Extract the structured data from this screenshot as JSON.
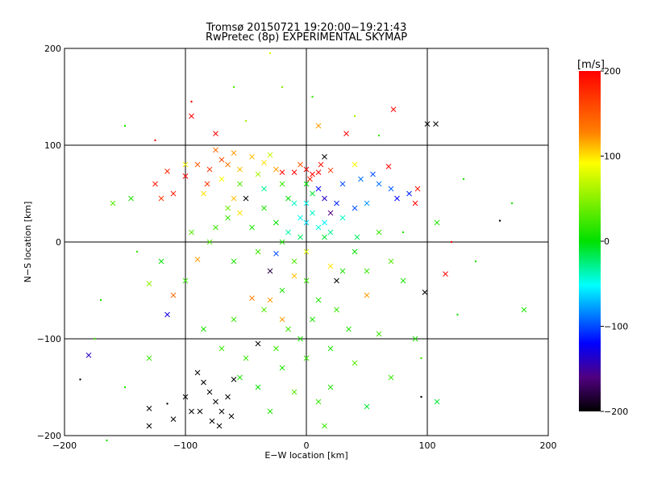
{
  "chart_data": {
    "type": "scatter",
    "title": "Tromsø 20150721 19:20:00−19:21:43",
    "subtitle": "RwPretec (8p) EXPERIMENTAL SKYMAP",
    "xlabel": "E−W location [km]",
    "ylabel": "N−S location [km]",
    "xlim": [
      -200,
      200
    ],
    "ylim": [
      -200,
      200
    ],
    "xticks": [
      -200,
      -100,
      0,
      100,
      200
    ],
    "yticks": [
      -200,
      -100,
      0,
      100,
      200
    ],
    "xtick_labels": [
      "−200",
      "−100",
      "0",
      "100",
      "200"
    ],
    "ytick_labels": [
      "−200",
      "−100",
      "0",
      "100",
      "200"
    ],
    "grid": true,
    "colorbar": {
      "label": "[m/s]",
      "range": [
        -200,
        200
      ],
      "ticks": [
        200,
        100,
        0,
        -100,
        -200
      ],
      "tick_labels": [
        "200",
        "100",
        "0",
        "−100",
        "−200"
      ],
      "colormap": "rainbow (black–violet–blue–cyan–green–yellow–red)"
    },
    "markers": [
      "x",
      "dot"
    ],
    "points": [
      {
        "x": 0,
        "y": 75,
        "v": 200,
        "m": "x"
      },
      {
        "x": 5,
        "y": 70,
        "v": 200,
        "m": "x"
      },
      {
        "x": 10,
        "y": 72,
        "v": 200,
        "m": "x"
      },
      {
        "x": -10,
        "y": 72,
        "v": 200,
        "m": "x"
      },
      {
        "x": -20,
        "y": 72,
        "v": 200,
        "m": "x"
      },
      {
        "x": 3,
        "y": 65,
        "v": 180,
        "m": "x"
      },
      {
        "x": 12,
        "y": 80,
        "v": 190,
        "m": "x"
      },
      {
        "x": 20,
        "y": 74,
        "v": 170,
        "m": "x"
      },
      {
        "x": -5,
        "y": 80,
        "v": 150,
        "m": "x"
      },
      {
        "x": 33,
        "y": 112,
        "v": 200,
        "m": "x"
      },
      {
        "x": -115,
        "y": 73,
        "v": 180,
        "m": "x"
      },
      {
        "x": -100,
        "y": 68,
        "v": 200,
        "m": "x"
      },
      {
        "x": -80,
        "y": 75,
        "v": 170,
        "m": "x"
      },
      {
        "x": -70,
        "y": 85,
        "v": 160,
        "m": "x"
      },
      {
        "x": -65,
        "y": 80,
        "v": 130,
        "m": "x"
      },
      {
        "x": -60,
        "y": 92,
        "v": 120,
        "m": "x"
      },
      {
        "x": -55,
        "y": 75,
        "v": 110,
        "m": "x"
      },
      {
        "x": -75,
        "y": 112,
        "v": 200,
        "m": "x"
      },
      {
        "x": -95,
        "y": 130,
        "v": 200,
        "m": "x"
      },
      {
        "x": -125,
        "y": 60,
        "v": 190,
        "m": "x"
      },
      {
        "x": -110,
        "y": 50,
        "v": 185,
        "m": "x"
      },
      {
        "x": -120,
        "y": 45,
        "v": 170,
        "m": "x"
      },
      {
        "x": 72,
        "y": 137,
        "v": 200,
        "m": "x"
      },
      {
        "x": 68,
        "y": 78,
        "v": 200,
        "m": "x"
      },
      {
        "x": 90,
        "y": 40,
        "v": 200,
        "m": "x"
      },
      {
        "x": 92,
        "y": 55,
        "v": 190,
        "m": "x"
      },
      {
        "x": 115,
        "y": -33,
        "v": 200,
        "m": "x"
      },
      {
        "x": 120,
        "y": 0,
        "v": 200,
        "m": "dot"
      },
      {
        "x": 100,
        "y": 122,
        "v": -200,
        "m": "x"
      },
      {
        "x": 107,
        "y": 122,
        "v": -200,
        "m": "x"
      },
      {
        "x": 98,
        "y": -52,
        "v": -200,
        "m": "x"
      },
      {
        "x": 160,
        "y": 22,
        "v": -200,
        "m": "dot"
      },
      {
        "x": 95,
        "y": -160,
        "v": -200,
        "m": "dot"
      },
      {
        "x": -130,
        "y": -172,
        "v": -200,
        "m": "x"
      },
      {
        "x": -130,
        "y": -190,
        "v": -200,
        "m": "x"
      },
      {
        "x": -100,
        "y": -160,
        "v": -200,
        "m": "x"
      },
      {
        "x": -95,
        "y": -175,
        "v": -200,
        "m": "x"
      },
      {
        "x": -90,
        "y": -135,
        "v": -200,
        "m": "x"
      },
      {
        "x": -85,
        "y": -145,
        "v": -200,
        "m": "x"
      },
      {
        "x": -80,
        "y": -155,
        "v": -200,
        "m": "x"
      },
      {
        "x": -75,
        "y": -165,
        "v": -200,
        "m": "x"
      },
      {
        "x": -70,
        "y": -175,
        "v": -200,
        "m": "x"
      },
      {
        "x": -65,
        "y": -160,
        "v": -200,
        "m": "x"
      },
      {
        "x": -62,
        "y": -180,
        "v": -200,
        "m": "x"
      },
      {
        "x": -78,
        "y": -185,
        "v": -200,
        "m": "x"
      },
      {
        "x": -72,
        "y": -190,
        "v": -200,
        "m": "x"
      },
      {
        "x": -88,
        "y": -175,
        "v": -200,
        "m": "x"
      },
      {
        "x": -60,
        "y": -142,
        "v": -200,
        "m": "x"
      },
      {
        "x": -110,
        "y": -183,
        "v": -200,
        "m": "x"
      },
      {
        "x": -40,
        "y": -105,
        "v": -200,
        "m": "x"
      },
      {
        "x": -50,
        "y": 45,
        "v": -200,
        "m": "x"
      },
      {
        "x": 15,
        "y": 88,
        "v": -200,
        "m": "x"
      },
      {
        "x": -187,
        "y": -142,
        "v": -200,
        "m": "dot"
      },
      {
        "x": -115,
        "y": -167,
        "v": -200,
        "m": "dot"
      },
      {
        "x": -30,
        "y": -30,
        "v": -180,
        "m": "x"
      },
      {
        "x": 25,
        "y": -40,
        "v": -200,
        "m": "x"
      },
      {
        "x": 20,
        "y": 30,
        "v": -160,
        "m": "x"
      },
      {
        "x": 10,
        "y": 55,
        "v": -120,
        "m": "x"
      },
      {
        "x": 15,
        "y": 45,
        "v": -140,
        "m": "x"
      },
      {
        "x": 25,
        "y": 40,
        "v": -110,
        "m": "x"
      },
      {
        "x": 30,
        "y": 60,
        "v": -100,
        "m": "x"
      },
      {
        "x": 45,
        "y": 65,
        "v": -90,
        "m": "x"
      },
      {
        "x": 55,
        "y": 70,
        "v": -100,
        "m": "x"
      },
      {
        "x": 60,
        "y": 60,
        "v": -90,
        "m": "x"
      },
      {
        "x": 70,
        "y": 55,
        "v": -95,
        "m": "x"
      },
      {
        "x": 85,
        "y": 50,
        "v": -110,
        "m": "x"
      },
      {
        "x": 75,
        "y": 45,
        "v": -120,
        "m": "x"
      },
      {
        "x": 40,
        "y": 35,
        "v": -100,
        "m": "x"
      },
      {
        "x": 50,
        "y": 40,
        "v": -80,
        "m": "x"
      },
      {
        "x": -180,
        "y": -117,
        "v": -140,
        "m": "x"
      },
      {
        "x": -115,
        "y": -75,
        "v": -130,
        "m": "x"
      },
      {
        "x": -25,
        "y": -12,
        "v": -100,
        "m": "x"
      },
      {
        "x": 0,
        "y": 20,
        "v": -60,
        "m": "x"
      },
      {
        "x": 5,
        "y": 30,
        "v": -40,
        "m": "x"
      },
      {
        "x": -5,
        "y": 25,
        "v": -50,
        "m": "x"
      },
      {
        "x": 10,
        "y": 15,
        "v": -45,
        "m": "x"
      },
      {
        "x": 15,
        "y": 20,
        "v": -55,
        "m": "x"
      },
      {
        "x": -10,
        "y": 40,
        "v": -40,
        "m": "x"
      },
      {
        "x": 20,
        "y": 10,
        "v": -30,
        "m": "x"
      },
      {
        "x": 0,
        "y": 40,
        "v": -50,
        "m": "x"
      },
      {
        "x": -15,
        "y": 10,
        "v": -35,
        "m": "x"
      },
      {
        "x": 30,
        "y": 25,
        "v": -40,
        "m": "x"
      },
      {
        "x": -35,
        "y": 55,
        "v": -30,
        "m": "x"
      },
      {
        "x": 42,
        "y": 5,
        "v": -20,
        "m": "x"
      },
      {
        "x": 108,
        "y": -165,
        "v": -10,
        "m": "x"
      },
      {
        "x": 180,
        "y": -70,
        "v": 10,
        "m": "x"
      },
      {
        "x": 108,
        "y": 20,
        "v": 10,
        "m": "x"
      },
      {
        "x": -145,
        "y": 45,
        "v": 10,
        "m": "x"
      },
      {
        "x": -130,
        "y": -43,
        "v": 50,
        "m": "x"
      },
      {
        "x": -165,
        "y": -205,
        "v": 10,
        "m": "dot"
      },
      {
        "x": 50,
        "y": -170,
        "v": -10,
        "m": "x"
      },
      {
        "x": 90,
        "y": -100,
        "v": 10,
        "m": "x"
      },
      {
        "x": 70,
        "y": -140,
        "v": 20,
        "m": "x"
      },
      {
        "x": -30,
        "y": -60,
        "v": 120,
        "m": "x"
      },
      {
        "x": -45,
        "y": -58,
        "v": 130,
        "m": "x"
      },
      {
        "x": -20,
        "y": -80,
        "v": 120,
        "m": "x"
      },
      {
        "x": 0,
        "y": -10,
        "v": 80,
        "m": "x"
      },
      {
        "x": -10,
        "y": -35,
        "v": 110,
        "m": "x"
      },
      {
        "x": 20,
        "y": -25,
        "v": 100,
        "m": "x"
      },
      {
        "x": 50,
        "y": -55,
        "v": 120,
        "m": "x"
      },
      {
        "x": -110,
        "y": -55,
        "v": 140,
        "m": "x"
      },
      {
        "x": -90,
        "y": -18,
        "v": 120,
        "m": "x"
      },
      {
        "x": -45,
        "y": 88,
        "v": 110,
        "m": "x"
      },
      {
        "x": -35,
        "y": 82,
        "v": 100,
        "m": "x"
      },
      {
        "x": -25,
        "y": 75,
        "v": 120,
        "m": "x"
      },
      {
        "x": -60,
        "y": 45,
        "v": 110,
        "m": "x"
      },
      {
        "x": -55,
        "y": 30,
        "v": 100,
        "m": "x"
      },
      {
        "x": -70,
        "y": 65,
        "v": 90,
        "m": "x"
      },
      {
        "x": -85,
        "y": 50,
        "v": 100,
        "m": "x"
      },
      {
        "x": -100,
        "y": 80,
        "v": 90,
        "m": "x"
      },
      {
        "x": 10,
        "y": 120,
        "v": 120,
        "m": "x"
      },
      {
        "x": -90,
        "y": 80,
        "v": 150,
        "m": "x"
      },
      {
        "x": -75,
        "y": 95,
        "v": 140,
        "m": "x"
      },
      {
        "x": -82,
        "y": 60,
        "v": 170,
        "m": "x"
      },
      {
        "x": -40,
        "y": 70,
        "v": 60,
        "m": "x"
      },
      {
        "x": -30,
        "y": 90,
        "v": 70,
        "m": "x"
      },
      {
        "x": 40,
        "y": 80,
        "v": 90,
        "m": "x"
      },
      {
        "x": -160,
        "y": 40,
        "v": 30,
        "m": "x"
      },
      {
        "x": -130,
        "y": -120,
        "v": 20,
        "m": "x"
      },
      {
        "x": -85,
        "y": -90,
        "v": 10,
        "m": "x"
      },
      {
        "x": -40,
        "y": -150,
        "v": 0,
        "m": "x"
      },
      {
        "x": -20,
        "y": -130,
        "v": 10,
        "m": "x"
      },
      {
        "x": 0,
        "y": -120,
        "v": 20,
        "m": "x"
      },
      {
        "x": 20,
        "y": -110,
        "v": 10,
        "m": "x"
      },
      {
        "x": -50,
        "y": -120,
        "v": 20,
        "m": "x"
      },
      {
        "x": -10,
        "y": -155,
        "v": 30,
        "m": "x"
      },
      {
        "x": 10,
        "y": -165,
        "v": 20,
        "m": "x"
      },
      {
        "x": 20,
        "y": -150,
        "v": 10,
        "m": "x"
      },
      {
        "x": -30,
        "y": -175,
        "v": 10,
        "m": "x"
      },
      {
        "x": 15,
        "y": -190,
        "v": 20,
        "m": "x"
      },
      {
        "x": 40,
        "y": -125,
        "v": 30,
        "m": "x"
      },
      {
        "x": 60,
        "y": -95,
        "v": 20,
        "m": "x"
      },
      {
        "x": -60,
        "y": -80,
        "v": 20,
        "m": "x"
      },
      {
        "x": -100,
        "y": -40,
        "v": 20,
        "m": "x"
      },
      {
        "x": -120,
        "y": -20,
        "v": 0,
        "m": "x"
      },
      {
        "x": -80,
        "y": 0,
        "v": 30,
        "m": "x"
      },
      {
        "x": -60,
        "y": -20,
        "v": 10,
        "m": "x"
      },
      {
        "x": -40,
        "y": -10,
        "v": 20,
        "m": "x"
      },
      {
        "x": -20,
        "y": 0,
        "v": 10,
        "m": "x"
      },
      {
        "x": -10,
        "y": -20,
        "v": 30,
        "m": "x"
      },
      {
        "x": 0,
        "y": -40,
        "v": 20,
        "m": "x"
      },
      {
        "x": 10,
        "y": -60,
        "v": 10,
        "m": "x"
      },
      {
        "x": -20,
        "y": -50,
        "v": 10,
        "m": "x"
      },
      {
        "x": -35,
        "y": -70,
        "v": 30,
        "m": "x"
      },
      {
        "x": -15,
        "y": -90,
        "v": 20,
        "m": "x"
      },
      {
        "x": 5,
        "y": -80,
        "v": 10,
        "m": "x"
      },
      {
        "x": 25,
        "y": -70,
        "v": 20,
        "m": "x"
      },
      {
        "x": 30,
        "y": -30,
        "v": 10,
        "m": "x"
      },
      {
        "x": 40,
        "y": -10,
        "v": 0,
        "m": "x"
      },
      {
        "x": 15,
        "y": 5,
        "v": -10,
        "m": "x"
      },
      {
        "x": -5,
        "y": 5,
        "v": -20,
        "m": "x"
      },
      {
        "x": -25,
        "y": 20,
        "v": 0,
        "m": "x"
      },
      {
        "x": -45,
        "y": 15,
        "v": 10,
        "m": "x"
      },
      {
        "x": -65,
        "y": 25,
        "v": 20,
        "m": "x"
      },
      {
        "x": -35,
        "y": 35,
        "v": 10,
        "m": "x"
      },
      {
        "x": -15,
        "y": 45,
        "v": 0,
        "m": "x"
      },
      {
        "x": 5,
        "y": 50,
        "v": -10,
        "m": "x"
      },
      {
        "x": -20,
        "y": 60,
        "v": 20,
        "m": "x"
      },
      {
        "x": 0,
        "y": 60,
        "v": 0,
        "m": "x"
      },
      {
        "x": -55,
        "y": 60,
        "v": 30,
        "m": "x"
      },
      {
        "x": -65,
        "y": 35,
        "v": 40,
        "m": "x"
      },
      {
        "x": -75,
        "y": 15,
        "v": 20,
        "m": "x"
      },
      {
        "x": -95,
        "y": 10,
        "v": 30,
        "m": "x"
      },
      {
        "x": 60,
        "y": 10,
        "v": 20,
        "m": "x"
      },
      {
        "x": 70,
        "y": -20,
        "v": 30,
        "m": "x"
      },
      {
        "x": 80,
        "y": -40,
        "v": 10,
        "m": "x"
      },
      {
        "x": 50,
        "y": -30,
        "v": 20,
        "m": "x"
      },
      {
        "x": 35,
        "y": -90,
        "v": 10,
        "m": "x"
      },
      {
        "x": -70,
        "y": -110,
        "v": 20,
        "m": "x"
      },
      {
        "x": -55,
        "y": -140,
        "v": 10,
        "m": "x"
      },
      {
        "x": -25,
        "y": -110,
        "v": 20,
        "m": "x"
      },
      {
        "x": -5,
        "y": -100,
        "v": 10,
        "m": "x"
      },
      {
        "x": 80,
        "y": 10,
        "v": 10,
        "m": "dot"
      },
      {
        "x": 140,
        "y": -20,
        "v": 10,
        "m": "dot"
      },
      {
        "x": -150,
        "y": 120,
        "v": 10,
        "m": "dot"
      },
      {
        "x": -140,
        "y": -10,
        "v": 20,
        "m": "dot"
      },
      {
        "x": -170,
        "y": -60,
        "v": 10,
        "m": "dot"
      },
      {
        "x": -125,
        "y": 105,
        "v": 190,
        "m": "dot"
      },
      {
        "x": -95,
        "y": 145,
        "v": 200,
        "m": "dot"
      },
      {
        "x": -30,
        "y": 195,
        "v": 80,
        "m": "dot"
      },
      {
        "x": -20,
        "y": 160,
        "v": 50,
        "m": "dot"
      },
      {
        "x": 5,
        "y": 150,
        "v": 20,
        "m": "dot"
      },
      {
        "x": -50,
        "y": 125,
        "v": 60,
        "m": "dot"
      },
      {
        "x": 130,
        "y": 65,
        "v": 10,
        "m": "dot"
      },
      {
        "x": 125,
        "y": -75,
        "v": 10,
        "m": "dot"
      },
      {
        "x": 95,
        "y": -120,
        "v": 20,
        "m": "dot"
      },
      {
        "x": -150,
        "y": -150,
        "v": 10,
        "m": "dot"
      },
      {
        "x": -175,
        "y": -100,
        "v": 20,
        "m": "dot"
      },
      {
        "x": 170,
        "y": 40,
        "v": 10,
        "m": "dot"
      },
      {
        "x": 60,
        "y": 110,
        "v": 20,
        "m": "dot"
      },
      {
        "x": 40,
        "y": 130,
        "v": 60,
        "m": "dot"
      },
      {
        "x": -60,
        "y": 160,
        "v": 30,
        "m": "dot"
      }
    ]
  }
}
